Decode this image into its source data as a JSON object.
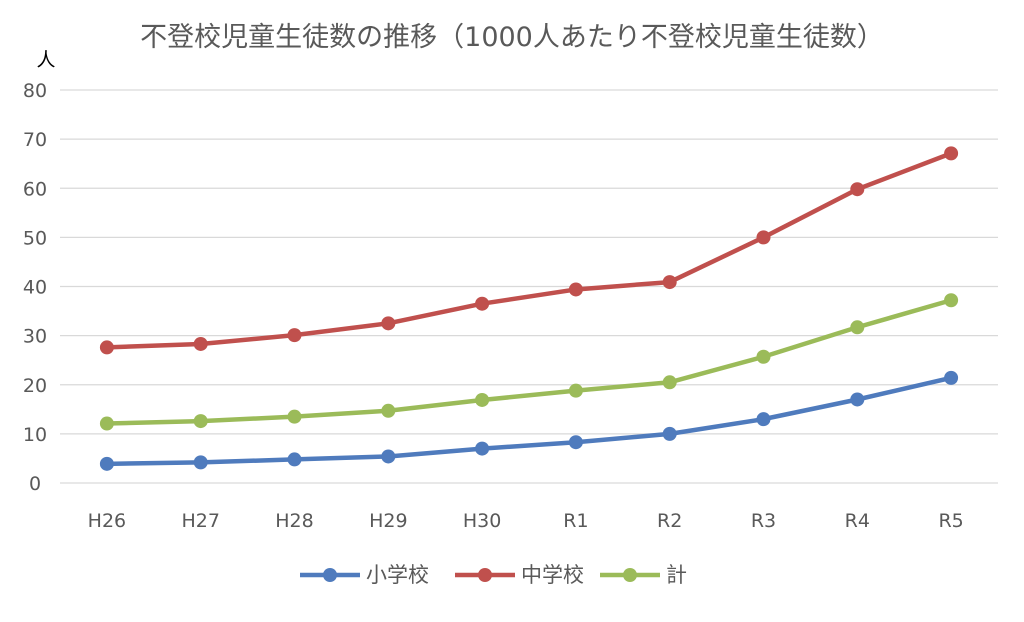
{
  "chart_data": {
    "type": "line",
    "title": "不登校児童生徒数の推移（1000人あたり不登校児童生徒数）",
    "ylabel": "人",
    "xlabel": "",
    "ylim": [
      0,
      80
    ],
    "yticks": [
      0,
      10,
      20,
      30,
      40,
      50,
      60,
      70,
      80
    ],
    "grid": true,
    "legend_position": "bottom",
    "categories": [
      "H26",
      "H27",
      "H28",
      "H29",
      "H30",
      "R1",
      "R2",
      "R3",
      "R4",
      "R5"
    ],
    "series": [
      {
        "name": "小学校",
        "color": "#4f7bbd",
        "values": [
          3.9,
          4.2,
          4.8,
          5.4,
          7.0,
          8.3,
          10.0,
          13.0,
          17.0,
          21.4
        ]
      },
      {
        "name": "中学校",
        "color": "#c0504d",
        "values": [
          27.6,
          28.3,
          30.1,
          32.5,
          36.5,
          39.4,
          40.9,
          50.0,
          59.8,
          67.1
        ]
      },
      {
        "name": "計",
        "color": "#9bbb59",
        "values": [
          12.1,
          12.6,
          13.5,
          14.7,
          16.9,
          18.8,
          20.5,
          25.7,
          31.7,
          37.2
        ]
      }
    ]
  }
}
